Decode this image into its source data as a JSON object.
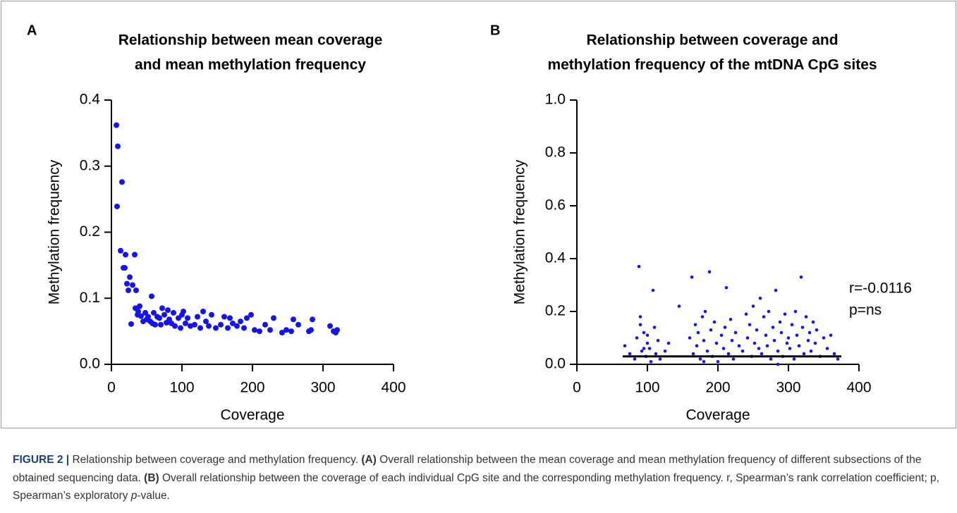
{
  "chart_data": [
    {
      "type": "scatter",
      "panel": "A",
      "title": [
        "Relationship between mean coverage",
        "and mean methylation frequency"
      ],
      "x_label": "Coverage",
      "y_label": "Methylation frequency",
      "xlim": [
        0,
        400
      ],
      "xticks": [
        0,
        100,
        200,
        300,
        400
      ],
      "ylim": [
        0,
        0.4
      ],
      "yticks": [
        {
          "value": 0,
          "label": "0.0"
        },
        0.1,
        0.2,
        0.3,
        0.4
      ],
      "series": [
        {
          "color": "#1414f0",
          "x": [
            7,
            9,
            8,
            13,
            15,
            17,
            20,
            22,
            19,
            24,
            26,
            28,
            30,
            33,
            34,
            35,
            37,
            38,
            40,
            42,
            45,
            48,
            50,
            52,
            55,
            57,
            58,
            60,
            62,
            65,
            68,
            70,
            72,
            75,
            78,
            80,
            82,
            85,
            88,
            90,
            95,
            98,
            100,
            102,
            105,
            108,
            112,
            118,
            122,
            126,
            130,
            134,
            138,
            142,
            148,
            155,
            160,
            165,
            168,
            172,
            178,
            183,
            188,
            192,
            198,
            203,
            210,
            218,
            225,
            230,
            242,
            248,
            255,
            258,
            265,
            280,
            283,
            285,
            310,
            315,
            318,
            320
          ],
          "values": [
            0.362,
            0.33,
            0.239,
            0.172,
            0.276,
            0.146,
            0.166,
            0.122,
            0.146,
            0.112,
            0.132,
            0.061,
            0.12,
            0.166,
            0.085,
            0.112,
            0.075,
            0.08,
            0.088,
            0.073,
            0.065,
            0.078,
            0.068,
            0.072,
            0.065,
            0.103,
            0.062,
            0.078,
            0.06,
            0.072,
            0.07,
            0.06,
            0.085,
            0.075,
            0.063,
            0.082,
            0.068,
            0.062,
            0.078,
            0.058,
            0.07,
            0.055,
            0.075,
            0.08,
            0.062,
            0.07,
            0.058,
            0.06,
            0.072,
            0.055,
            0.08,
            0.065,
            0.058,
            0.075,
            0.055,
            0.06,
            0.072,
            0.055,
            0.07,
            0.062,
            0.058,
            0.065,
            0.055,
            0.07,
            0.075,
            0.052,
            0.05,
            0.06,
            0.052,
            0.07,
            0.048,
            0.052,
            0.05,
            0.068,
            0.06,
            0.05,
            0.052,
            0.068,
            0.058,
            0.05,
            0.048,
            0.052
          ]
        }
      ]
    },
    {
      "type": "scatter",
      "panel": "B",
      "title": [
        "Relationship between coverage and",
        "methylation frequency of the mtDNA CpG sites"
      ],
      "x_label": "Coverage",
      "y_label": "Methylation frequency",
      "xlim": [
        0,
        400
      ],
      "xticks": [
        0,
        100,
        200,
        300,
        400
      ],
      "ylim": [
        0,
        1
      ],
      "yticks": [
        {
          "value": 0,
          "label": "0.0"
        },
        0.2,
        0.4,
        0.6,
        0.8,
        {
          "value": 1,
          "label": "1.0"
        }
      ],
      "series": [
        {
          "color": "#1414f0",
          "x": [
            68,
            75,
            82,
            85,
            88,
            90,
            92,
            95,
            98,
            100,
            103,
            105,
            108,
            110,
            112,
            115,
            118,
            90,
            95,
            100,
            125,
            130,
            145,
            160,
            163,
            165,
            168,
            170,
            172,
            175,
            178,
            180,
            182,
            185,
            188,
            190,
            192,
            195,
            198,
            200,
            205,
            208,
            210,
            212,
            215,
            218,
            220,
            222,
            225,
            230,
            235,
            240,
            242,
            245,
            248,
            250,
            252,
            255,
            258,
            260,
            262,
            265,
            268,
            270,
            272,
            275,
            278,
            280,
            282,
            285,
            288,
            290,
            292,
            295,
            298,
            300,
            302,
            305,
            308,
            310,
            312,
            315,
            318,
            320,
            322,
            325,
            328,
            330,
            332,
            335,
            338,
            340,
            345,
            350,
            355,
            360,
            365,
            370,
            180,
            285
          ],
          "values": [
            0.07,
            0.04,
            0.02,
            0.1,
            0.37,
            0.15,
            0.05,
            0.12,
            0.03,
            0.08,
            0.06,
            0.01,
            0.28,
            0.14,
            0.04,
            0.09,
            0.02,
            0.18,
            0.06,
            0.11,
            0.05,
            0.08,
            0.22,
            0.1,
            0.33,
            0.04,
            0.15,
            0.07,
            0.12,
            0.02,
            0.18,
            0.09,
            0.2,
            0.05,
            0.35,
            0.13,
            0.03,
            0.16,
            0.08,
            0.01,
            0.11,
            0.06,
            0.14,
            0.29,
            0.04,
            0.17,
            0.09,
            0.02,
            0.12,
            0.07,
            0.05,
            0.19,
            0.1,
            0.15,
            0.03,
            0.22,
            0.08,
            0.13,
            0.06,
            0.25,
            0.04,
            0.18,
            0.11,
            0.07,
            0.2,
            0.02,
            0.14,
            0.09,
            0.28,
            0.05,
            0.16,
            0.12,
            0.03,
            0.19,
            0.08,
            0.1,
            0.06,
            0.15,
            0.02,
            0.2,
            0.11,
            0.07,
            0.33,
            0.14,
            0.04,
            0.18,
            0.09,
            0.12,
            0.05,
            0.16,
            0.08,
            0.13,
            0.03,
            0.1,
            0.06,
            0.11,
            0.04,
            0.02,
            0.01,
            0
          ]
        }
      ],
      "trend_line": {
        "y": 0.03,
        "x": [
          65,
          375
        ]
      },
      "annotations": [
        "r=-0.0116",
        "p=ns"
      ]
    }
  ],
  "caption": [
    {
      "text": "FIGURE 2 |",
      "bold": true
    },
    {
      "text": " Relationship between coverage and methylation frequency. "
    },
    {
      "text": "(A)",
      "bold": true
    },
    {
      "text": " Overall relationship between the mean coverage and mean methylation frequency of different subsections of the obtained sequencing data. "
    },
    {
      "text": "(B)",
      "bold": true
    },
    {
      "text": " Overall relationship between the coverage of each individual CpG site and the corresponding methylation frequency. r, Spearman’s rank correlation coefficient; p, Spearman’s exploratory "
    },
    {
      "text": "p",
      "italic": true
    },
    {
      "text": "-value."
    }
  ]
}
